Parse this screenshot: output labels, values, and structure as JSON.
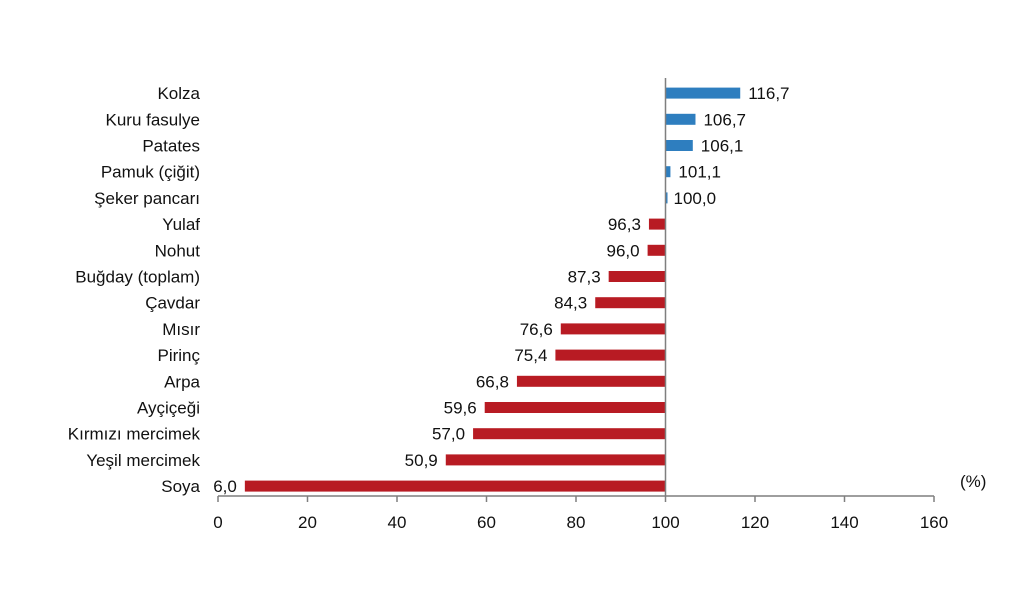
{
  "chart_data": {
    "type": "bar",
    "orientation": "horizontal",
    "baseline": 100,
    "categories": [
      "Kolza",
      "Kuru fasulye",
      "Patates",
      "Pamuk (çiğit)",
      "Şeker pancarı",
      "Yulaf",
      "Nohut",
      "Buğday (toplam)",
      "Çavdar",
      "Mısır",
      "Pirinç",
      "Arpa",
      "Ayçiçeği",
      "Kırmızı mercimek",
      "Yeşil mercimek",
      "Soya"
    ],
    "values": [
      116.7,
      106.7,
      106.1,
      101.1,
      100.0,
      96.3,
      96.0,
      87.3,
      84.3,
      76.6,
      75.4,
      66.8,
      59.6,
      57.0,
      50.9,
      6.0
    ],
    "value_labels": [
      "116,7",
      "106,7",
      "106,1",
      "101,1",
      "100,0",
      "96,3",
      "96,0",
      "87,3",
      "84,3",
      "76,6",
      "75,4",
      "66,8",
      "59,6",
      "57,0",
      "50,9",
      "6,0"
    ],
    "xlim": [
      0,
      160
    ],
    "xticks": [
      "0",
      "20",
      "40",
      "60",
      "80",
      "100",
      "120",
      "140",
      "160"
    ],
    "unit_label": "(%)",
    "colors": {
      "above": "#2e7ebf",
      "below": "#b81b23",
      "axis": "#7f7f7f"
    },
    "grid": false,
    "legend": "none"
  }
}
